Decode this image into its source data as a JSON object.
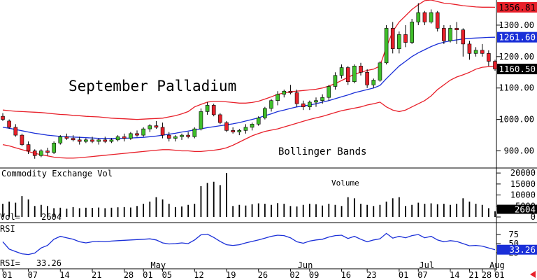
{
  "chart_data": {
    "type": "candlestick",
    "title": "September Palladium",
    "annotation": "Bollinger Bands",
    "price_ylim": [
      850,
      1380
    ],
    "price_ticks": [
      "1300.00",
      "1200.00",
      "1100.00",
      "1000.00",
      "900.00"
    ],
    "price_tick_values": [
      1300,
      1200,
      1100,
      1000,
      900
    ],
    "badges": {
      "upper": {
        "text": "1356.81",
        "value": 1356.81,
        "color": "#e8202a"
      },
      "middle": {
        "text": "1261.60",
        "value": 1261.6,
        "color": "#1a2fd8"
      },
      "last": {
        "text": "1160.50",
        "value": 1160.5,
        "color": "#000000"
      }
    },
    "candles": [
      [
        1010,
        1020,
        995,
        1000
      ],
      [
        995,
        1000,
        970,
        975
      ],
      [
        975,
        985,
        945,
        950
      ],
      [
        950,
        955,
        915,
        920
      ],
      [
        920,
        930,
        890,
        900
      ],
      [
        900,
        905,
        875,
        885
      ],
      [
        885,
        905,
        880,
        900
      ],
      [
        900,
        910,
        885,
        895
      ],
      [
        895,
        930,
        890,
        925
      ],
      [
        925,
        950,
        920,
        945
      ],
      [
        945,
        955,
        935,
        940
      ],
      [
        940,
        950,
        930,
        935
      ],
      [
        935,
        945,
        920,
        930
      ],
      [
        930,
        940,
        925,
        935
      ],
      [
        935,
        945,
        925,
        930
      ],
      [
        930,
        940,
        920,
        935
      ],
      [
        935,
        945,
        925,
        930
      ],
      [
        930,
        940,
        925,
        935
      ],
      [
        935,
        950,
        930,
        945
      ],
      [
        945,
        955,
        930,
        940
      ],
      [
        940,
        960,
        935,
        955
      ],
      [
        955,
        965,
        945,
        950
      ],
      [
        950,
        975,
        945,
        970
      ],
      [
        970,
        985,
        960,
        980
      ],
      [
        980,
        995,
        970,
        975
      ],
      [
        975,
        990,
        940,
        950
      ],
      [
        950,
        960,
        930,
        940
      ],
      [
        940,
        950,
        930,
        945
      ],
      [
        945,
        955,
        935,
        950
      ],
      [
        950,
        960,
        940,
        945
      ],
      [
        945,
        975,
        940,
        970
      ],
      [
        970,
        1035,
        965,
        1025
      ],
      [
        1025,
        1055,
        1015,
        1045
      ],
      [
        1045,
        1050,
        1010,
        1015
      ],
      [
        1015,
        1020,
        985,
        990
      ],
      [
        990,
        995,
        960,
        965
      ],
      [
        965,
        975,
        955,
        960
      ],
      [
        960,
        970,
        950,
        965
      ],
      [
        965,
        985,
        955,
        975
      ],
      [
        975,
        990,
        965,
        985
      ],
      [
        985,
        1010,
        980,
        1005
      ],
      [
        1005,
        1040,
        1000,
        1035
      ],
      [
        1035,
        1065,
        1025,
        1060
      ],
      [
        1060,
        1090,
        1045,
        1080
      ],
      [
        1080,
        1095,
        1070,
        1090
      ],
      [
        1090,
        1110,
        1080,
        1085
      ],
      [
        1085,
        1095,
        1040,
        1050
      ],
      [
        1050,
        1060,
        1030,
        1040
      ],
      [
        1040,
        1060,
        1030,
        1055
      ],
      [
        1055,
        1070,
        1040,
        1060
      ],
      [
        1060,
        1080,
        1050,
        1070
      ],
      [
        1070,
        1110,
        1060,
        1105
      ],
      [
        1105,
        1150,
        1095,
        1140
      ],
      [
        1140,
        1175,
        1130,
        1165
      ],
      [
        1165,
        1170,
        1110,
        1120
      ],
      [
        1120,
        1175,
        1115,
        1170
      ],
      [
        1170,
        1180,
        1140,
        1150
      ],
      [
        1150,
        1160,
        1100,
        1110
      ],
      [
        1110,
        1130,
        1100,
        1125
      ],
      [
        1125,
        1185,
        1120,
        1180
      ],
      [
        1180,
        1300,
        1175,
        1290
      ],
      [
        1290,
        1310,
        1210,
        1225
      ],
      [
        1225,
        1280,
        1210,
        1270
      ],
      [
        1270,
        1300,
        1230,
        1245
      ],
      [
        1245,
        1320,
        1240,
        1310
      ],
      [
        1310,
        1370,
        1300,
        1340
      ],
      [
        1340,
        1345,
        1300,
        1310
      ],
      [
        1310,
        1350,
        1305,
        1340
      ],
      [
        1340,
        1345,
        1280,
        1290
      ],
      [
        1290,
        1300,
        1240,
        1250
      ],
      [
        1250,
        1300,
        1245,
        1290
      ],
      [
        1290,
        1310,
        1240,
        1285
      ],
      [
        1285,
        1290,
        1200,
        1240
      ],
      [
        1240,
        1250,
        1190,
        1210
      ],
      [
        1210,
        1230,
        1200,
        1220
      ],
      [
        1220,
        1240,
        1200,
        1210
      ],
      [
        1210,
        1220,
        1170,
        1185
      ],
      [
        1185,
        1190,
        1155,
        1160.5
      ]
    ],
    "bollinger_upper": [
      1030,
      1028,
      1026,
      1025,
      1024,
      1023,
      1022,
      1020,
      1018,
      1016,
      1015,
      1013,
      1012,
      1010,
      1009,
      1008,
      1006,
      1004,
      1003,
      1002,
      1001,
      1000,
      1001,
      1002,
      1003,
      1004,
      1008,
      1012,
      1018,
      1025,
      1040,
      1048,
      1055,
      1058,
      1058,
      1056,
      1054,
      1052,
      1052,
      1054,
      1058,
      1065,
      1072,
      1080,
      1084,
      1088,
      1090,
      1092,
      1094,
      1096,
      1100,
      1106,
      1114,
      1124,
      1134,
      1144,
      1150,
      1156,
      1160,
      1170,
      1230,
      1280,
      1310,
      1330,
      1350,
      1365,
      1378,
      1380,
      1375,
      1370,
      1368,
      1365,
      1362,
      1360,
      1358,
      1357,
      1357,
      1356.81
    ],
    "bollinger_middle": [
      975,
      972,
      968,
      964,
      960,
      956,
      953,
      950,
      948,
      946,
      945,
      944,
      943,
      942,
      941,
      940,
      940,
      940,
      940,
      940,
      941,
      942,
      943,
      945,
      947,
      950,
      953,
      956,
      960,
      963,
      967,
      970,
      974,
      977,
      980,
      983,
      986,
      990,
      995,
      1000,
      1005,
      1012,
      1018,
      1025,
      1030,
      1035,
      1040,
      1043,
      1046,
      1050,
      1055,
      1060,
      1066,
      1072,
      1078,
      1085,
      1090,
      1095,
      1100,
      1108,
      1130,
      1150,
      1170,
      1185,
      1200,
      1212,
      1222,
      1232,
      1240,
      1246,
      1250,
      1253,
      1256,
      1258,
      1259,
      1260,
      1261,
      1261.6
    ],
    "bollinger_lower": [
      920,
      916,
      910,
      904,
      898,
      892,
      888,
      884,
      880,
      878,
      877,
      877,
      878,
      880,
      882,
      884,
      886,
      888,
      890,
      892,
      894,
      896,
      898,
      900,
      902,
      904,
      904,
      902,
      900,
      900,
      898,
      898,
      900,
      902,
      905,
      910,
      918,
      928,
      938,
      948,
      955,
      962,
      966,
      970,
      976,
      982,
      988,
      994,
      1000,
      1005,
      1010,
      1016,
      1022,
      1028,
      1032,
      1036,
      1040,
      1046,
      1050,
      1055,
      1040,
      1030,
      1025,
      1030,
      1040,
      1050,
      1060,
      1075,
      1095,
      1110,
      1125,
      1135,
      1142,
      1150,
      1160,
      1166,
      1168,
      1170
    ],
    "volume_panel": {
      "title": "Commodity Exchange Vol",
      "series_label": "Volume",
      "readout_label": "Vol=",
      "readout_value": "2604",
      "badge": "2604",
      "ylim": [
        0,
        21000
      ],
      "ticks": [
        "20000",
        "15000",
        "10000",
        "5000",
        "0"
      ],
      "tick_values": [
        20000,
        15000,
        10000,
        5000,
        0
      ],
      "values": [
        6000,
        7000,
        6500,
        9500,
        8000,
        5000,
        5500,
        5000,
        4000,
        4200,
        3800,
        4500,
        4000,
        4200,
        4100,
        4300,
        4000,
        4200,
        4400,
        4500,
        4300,
        5000,
        6000,
        7000,
        9000,
        8000,
        6000,
        4500,
        4800,
        5500,
        6000,
        14000,
        15500,
        16000,
        14500,
        20000,
        5000,
        5500,
        5200,
        5800,
        6200,
        6000,
        5500,
        6300,
        6000,
        5000,
        4800,
        5500,
        6000,
        5800,
        5200,
        6000,
        5500,
        5000,
        9000,
        8500,
        6000,
        5500,
        5000,
        5500,
        7000,
        8500,
        9000,
        5000,
        5500,
        6500,
        6000,
        6200,
        5800,
        6000,
        5500,
        6000,
        8500,
        7000,
        6000,
        5500,
        4000,
        2604
      ]
    },
    "rsi_panel": {
      "title": "RSI",
      "readout_label": "RSI=",
      "readout_value": "33.26",
      "badge": "33.26",
      "ylim": [
        0,
        100
      ],
      "ticks": [
        "75",
        "50",
        "25"
      ],
      "tick_values": [
        75,
        50,
        25
      ],
      "values": [
        55,
        35,
        28,
        22,
        20,
        24,
        38,
        45,
        62,
        70,
        66,
        62,
        55,
        52,
        55,
        56,
        55,
        57,
        58,
        59,
        60,
        61,
        62,
        63,
        60,
        52,
        49,
        50,
        52,
        50,
        60,
        74,
        76,
        67,
        56,
        47,
        45,
        47,
        52,
        56,
        60,
        65,
        70,
        73,
        72,
        66,
        55,
        51,
        57,
        60,
        62,
        68,
        72,
        73,
        64,
        70,
        62,
        55,
        60,
        63,
        78,
        65,
        70,
        66,
        72,
        75,
        66,
        70,
        60,
        55,
        58,
        56,
        50,
        44,
        45,
        43,
        38,
        33.26
      ]
    },
    "x_labels": [
      {
        "text": "01",
        "i": 0
      },
      {
        "text": "07",
        "i": 4
      },
      {
        "text": "14",
        "i": 9
      },
      {
        "text": "21",
        "i": 14
      },
      {
        "text": "28",
        "i": 19
      },
      {
        "text": "01",
        "i": 22
      },
      {
        "text": "05",
        "i": 25
      },
      {
        "text": "12",
        "i": 30
      },
      {
        "text": "19",
        "i": 35
      },
      {
        "text": "26",
        "i": 40
      },
      {
        "text": "02",
        "i": 45
      },
      {
        "text": "09",
        "i": 48
      },
      {
        "text": "16",
        "i": 53
      },
      {
        "text": "23",
        "i": 57
      },
      {
        "text": "01",
        "i": 62
      },
      {
        "text": "07",
        "i": 65
      },
      {
        "text": "14",
        "i": 70
      },
      {
        "text": "21",
        "i": 73
      },
      {
        "text": "28",
        "i": 75
      },
      {
        "text": "01",
        "i": 77
      }
    ],
    "month_labels": [
      {
        "text": "May",
        "i": 24
      },
      {
        "text": "Jun",
        "i": 47
      },
      {
        "text": "Jul",
        "i": 66
      },
      {
        "text": "Aug",
        "i": 77
      }
    ]
  }
}
